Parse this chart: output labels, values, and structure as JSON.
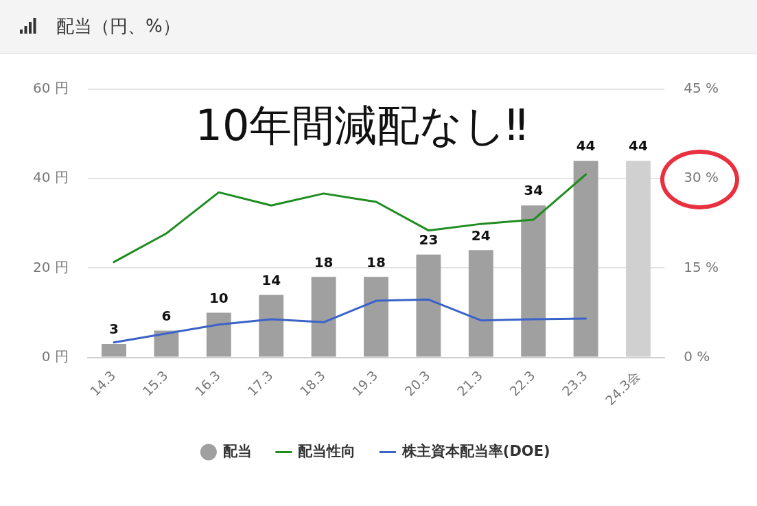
{
  "chart_data": {
    "type": "bar",
    "title": "配当（円、%）",
    "annotations": [
      "10年間減配なし‼"
    ],
    "categories": [
      "14.3",
      "15.3",
      "16.3",
      "17.3",
      "18.3",
      "19.3",
      "20.3",
      "21.3",
      "22.3",
      "23.3",
      "24.3会"
    ],
    "series": [
      {
        "name": "配当",
        "color": "#a0a0a0",
        "colors": [
          "#a0a0a0",
          "#a0a0a0",
          "#a0a0a0",
          "#a0a0a0",
          "#a0a0a0",
          "#a0a0a0",
          "#a0a0a0",
          "#a0a0a0",
          "#a0a0a0",
          "#a0a0a0",
          "#d0d0d0"
        ],
        "values": [
          3,
          6,
          10,
          14,
          18,
          18,
          23,
          24,
          34,
          44,
          44
        ],
        "value_labels": [
          "3",
          "6",
          "10",
          "14",
          "18",
          "18",
          "23",
          "24",
          "34",
          "44",
          "44"
        ]
      },
      {
        "name": "配当性向",
        "type": "line",
        "axis": "y2",
        "color": "#1e8c1e",
        "values": [
          16.0,
          20.8,
          27.7,
          25.5,
          27.5,
          26.1,
          21.3,
          22.4,
          23.1,
          30.7,
          null
        ]
      },
      {
        "name": "株主資本配当率(DOE)",
        "type": "line",
        "axis": "y2",
        "color": "#3a62c8",
        "values": [
          2.5,
          4.0,
          5.5,
          6.4,
          5.9,
          9.5,
          9.7,
          6.2,
          6.4,
          6.5,
          null
        ]
      }
    ],
    "ylim": [
      0,
      60
    ],
    "yticks": [
      {
        "value": 0,
        "label": "0 円"
      },
      {
        "value": 20,
        "label": "20 円"
      },
      {
        "value": 40,
        "label": "40 円"
      },
      {
        "value": 60,
        "label": "60 円"
      }
    ],
    "y2lim": [
      0,
      45
    ],
    "y2ticks": [
      {
        "value": 0,
        "label": "0 %"
      },
      {
        "value": 15,
        "label": "15 %"
      },
      {
        "value": 30,
        "label": "30 %"
      },
      {
        "value": 45,
        "label": "45 %"
      }
    ],
    "grid": "y",
    "legend": "bottom",
    "marker": "none",
    "line_style": "solid"
  }
}
